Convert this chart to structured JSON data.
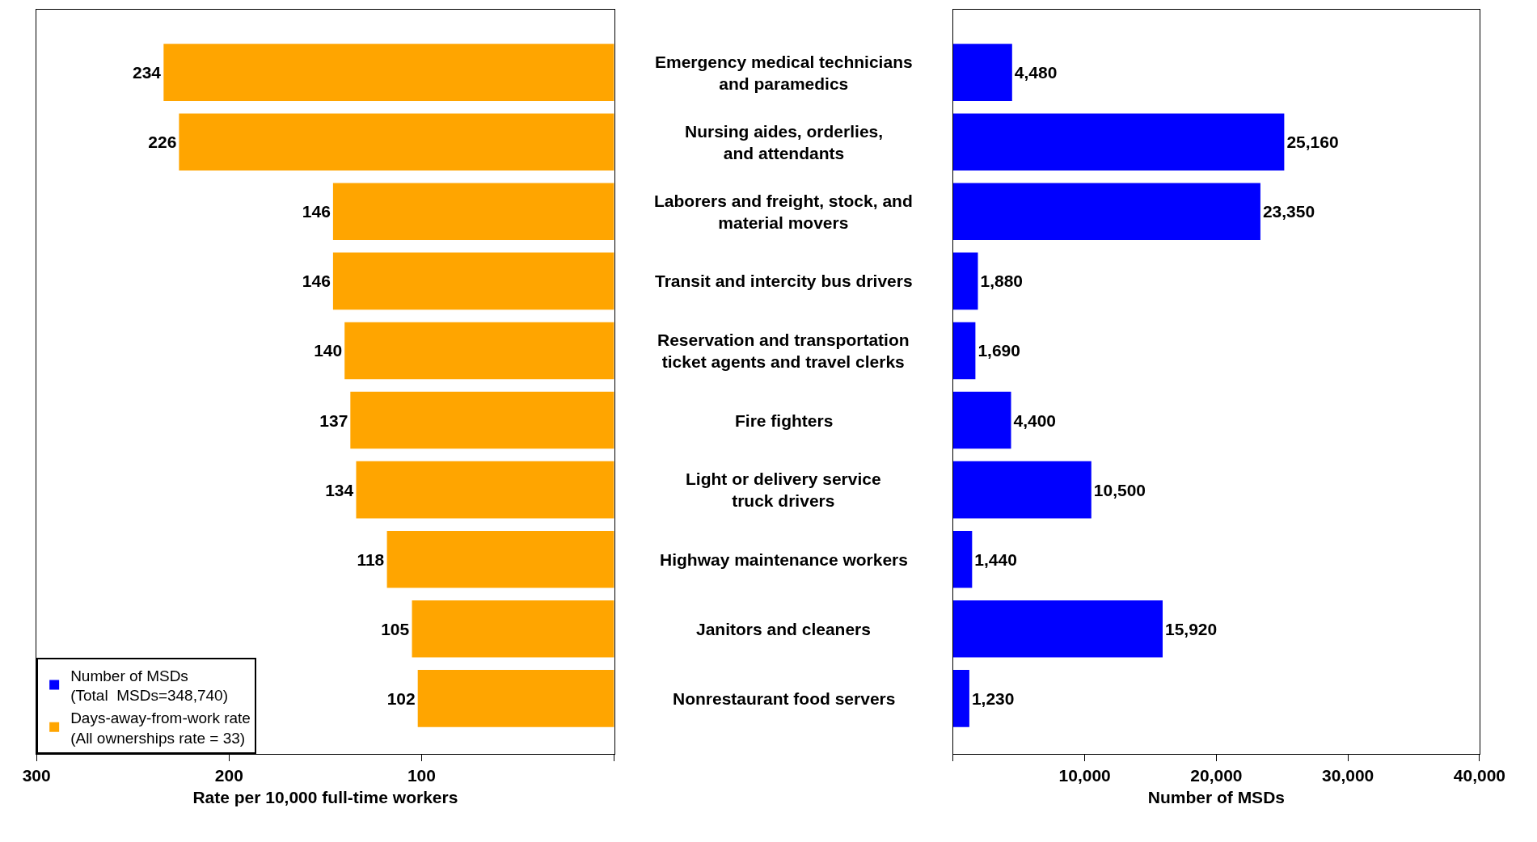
{
  "chart_data": [
    {
      "type": "bar",
      "orientation": "horizontal",
      "categories": [
        "Emergency medical technicians\nand paramedics",
        "Nursing aides, orderlies,\nand attendants",
        "Laborers and freight, stock, and\nmaterial movers",
        "Transit and intercity bus drivers",
        "Reservation and transportation\nticket agents and travel clerks",
        "Fire fighters",
        "Light or delivery service\ntruck drivers",
        "Highway maintenance workers",
        "Janitors and cleaners",
        "Nonrestaurant food servers"
      ],
      "series": [
        {
          "name": "Days-away-from-work rate\n(All ownerships rate = 33)",
          "color": "#ffa500",
          "values": [
            234,
            226,
            146,
            146,
            140,
            137,
            134,
            118,
            105,
            102
          ]
        }
      ],
      "data_labels": true,
      "xlim": [
        300,
        0
      ],
      "xticks": [
        300,
        200,
        100,
        {
          "value": 0,
          "label": null
        }
      ],
      "xlabel": "Rate per 10,000 full-time workers",
      "legend": "bottom left"
    },
    {
      "type": "bar",
      "orientation": "horizontal",
      "categories": [
        null,
        null,
        null,
        null,
        null,
        null,
        null,
        null,
        null,
        null
      ],
      "tick_labels": "x",
      "series": [
        {
          "name": "Number of MSDs\n(Total  MSDs=348,740)",
          "color": "#0000ff",
          "values": [
            4480,
            25160,
            23350,
            1880,
            1690,
            4400,
            10500,
            1440,
            15920,
            1230
          ],
          "value_labels": [
            "4,480",
            "25,160",
            "23,350",
            "1,880",
            "1,690",
            "4,400",
            "10,500",
            "1,440",
            "15,920",
            "1,230"
          ]
        }
      ],
      "xlim": [
        0,
        40000
      ],
      "xticks": [
        {
          "value": 0,
          "label": null
        },
        {
          "value": 10000,
          "label": "10,000"
        },
        {
          "value": 20000,
          "label": "20,000"
        },
        {
          "value": 30000,
          "label": "30,000"
        },
        {
          "value": 40000,
          "label": "40,000"
        }
      ],
      "xlabel": "Number of MSDs"
    }
  ]
}
